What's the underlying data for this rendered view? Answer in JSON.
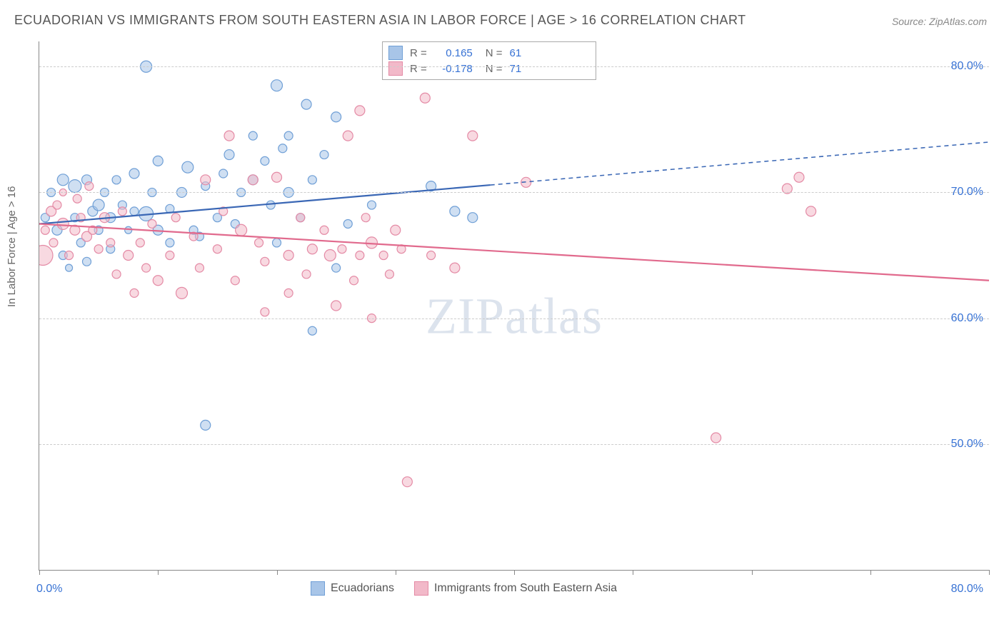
{
  "title": "ECUADORIAN VS IMMIGRANTS FROM SOUTH EASTERN ASIA IN LABOR FORCE | AGE > 16 CORRELATION CHART",
  "source": "Source: ZipAtlas.com",
  "ylabel": "In Labor Force | Age > 16",
  "watermark_bold": "ZIP",
  "watermark_light": "atlas",
  "chart": {
    "type": "scatter",
    "background_color": "#ffffff",
    "grid_color": "#cccccc",
    "axis_color": "#888888",
    "text_color": "#666666",
    "tick_label_color": "#3772d4",
    "xlim": [
      0,
      80
    ],
    "ylim": [
      40,
      82
    ],
    "xticks": [
      0,
      10,
      20,
      30,
      40,
      50,
      60,
      70,
      80
    ],
    "xmin_label": "0.0%",
    "xmax_label": "80.0%",
    "yticks": [
      {
        "v": 50,
        "label": "50.0%"
      },
      {
        "v": 60,
        "label": "60.0%"
      },
      {
        "v": 70,
        "label": "70.0%"
      },
      {
        "v": 80,
        "label": "80.0%"
      }
    ],
    "correlation_labels": {
      "r_prefix": "R =",
      "n_prefix": "N ="
    },
    "series": [
      {
        "name": "Ecuadorians",
        "fill": "#a8c5e8",
        "fill_opacity": 0.55,
        "stroke": "#6f9fd6",
        "line_color": "#3a67b5",
        "line_width": 2.2,
        "r_value": "0.165",
        "n_value": "61",
        "trend": {
          "x1": 0,
          "y1": 67.5,
          "x2": 80,
          "y2": 74.0,
          "solid_until_x": 38
        },
        "points": [
          {
            "x": 0.5,
            "y": 68,
            "r": 6
          },
          {
            "x": 1,
            "y": 70,
            "r": 6
          },
          {
            "x": 1.5,
            "y": 67,
            "r": 7
          },
          {
            "x": 2,
            "y": 71,
            "r": 8
          },
          {
            "x": 2,
            "y": 65,
            "r": 6
          },
          {
            "x": 2.5,
            "y": 64,
            "r": 5
          },
          {
            "x": 3,
            "y": 70.5,
            "r": 9
          },
          {
            "x": 3,
            "y": 68,
            "r": 6
          },
          {
            "x": 3.5,
            "y": 66,
            "r": 6
          },
          {
            "x": 4,
            "y": 71,
            "r": 7
          },
          {
            "x": 4,
            "y": 64.5,
            "r": 6
          },
          {
            "x": 4.5,
            "y": 68.5,
            "r": 7
          },
          {
            "x": 5,
            "y": 69,
            "r": 8
          },
          {
            "x": 5,
            "y": 67,
            "r": 6
          },
          {
            "x": 5.5,
            "y": 70,
            "r": 6
          },
          {
            "x": 6,
            "y": 68,
            "r": 7
          },
          {
            "x": 6,
            "y": 65.5,
            "r": 6
          },
          {
            "x": 6.5,
            "y": 71,
            "r": 6
          },
          {
            "x": 7,
            "y": 69,
            "r": 6
          },
          {
            "x": 7.5,
            "y": 67,
            "r": 5
          },
          {
            "x": 8,
            "y": 71.5,
            "r": 7
          },
          {
            "x": 8,
            "y": 68.5,
            "r": 6
          },
          {
            "x": 9,
            "y": 80,
            "r": 8
          },
          {
            "x": 9,
            "y": 68.3,
            "r": 10
          },
          {
            "x": 9.5,
            "y": 70,
            "r": 6
          },
          {
            "x": 10,
            "y": 67,
            "r": 7
          },
          {
            "x": 10,
            "y": 72.5,
            "r": 7
          },
          {
            "x": 11,
            "y": 68.7,
            "r": 6
          },
          {
            "x": 11,
            "y": 66,
            "r": 6
          },
          {
            "x": 12,
            "y": 70,
            "r": 7
          },
          {
            "x": 12.5,
            "y": 72,
            "r": 8
          },
          {
            "x": 13,
            "y": 67,
            "r": 6
          },
          {
            "x": 13.5,
            "y": 66.5,
            "r": 6
          },
          {
            "x": 14,
            "y": 51.5,
            "r": 7
          },
          {
            "x": 14,
            "y": 70.5,
            "r": 6
          },
          {
            "x": 15,
            "y": 68,
            "r": 6
          },
          {
            "x": 15.5,
            "y": 71.5,
            "r": 6
          },
          {
            "x": 16,
            "y": 73,
            "r": 7
          },
          {
            "x": 16.5,
            "y": 67.5,
            "r": 6
          },
          {
            "x": 17,
            "y": 70,
            "r": 6
          },
          {
            "x": 18,
            "y": 71,
            "r": 7
          },
          {
            "x": 18,
            "y": 74.5,
            "r": 6
          },
          {
            "x": 19,
            "y": 72.5,
            "r": 6
          },
          {
            "x": 19.5,
            "y": 69,
            "r": 6
          },
          {
            "x": 20,
            "y": 78.5,
            "r": 8
          },
          {
            "x": 20,
            "y": 66,
            "r": 6
          },
          {
            "x": 20.5,
            "y": 73.5,
            "r": 6
          },
          {
            "x": 21,
            "y": 70,
            "r": 7
          },
          {
            "x": 21,
            "y": 74.5,
            "r": 6
          },
          {
            "x": 22,
            "y": 68,
            "r": 6
          },
          {
            "x": 22.5,
            "y": 77,
            "r": 7
          },
          {
            "x": 23,
            "y": 59,
            "r": 6
          },
          {
            "x": 23,
            "y": 71,
            "r": 6
          },
          {
            "x": 24,
            "y": 73,
            "r": 6
          },
          {
            "x": 25,
            "y": 76,
            "r": 7
          },
          {
            "x": 25,
            "y": 64,
            "r": 6
          },
          {
            "x": 26,
            "y": 67.5,
            "r": 6
          },
          {
            "x": 28,
            "y": 69,
            "r": 6
          },
          {
            "x": 33,
            "y": 70.5,
            "r": 7
          },
          {
            "x": 35,
            "y": 68.5,
            "r": 7
          },
          {
            "x": 36.5,
            "y": 68,
            "r": 7
          }
        ]
      },
      {
        "name": "Immigrants from South Eastern Asia",
        "fill": "#f2b9c9",
        "fill_opacity": 0.55,
        "stroke": "#e48aa5",
        "line_color": "#e16a8d",
        "line_width": 2.2,
        "r_value": "-0.178",
        "n_value": "71",
        "trend": {
          "x1": 0,
          "y1": 67.5,
          "x2": 80,
          "y2": 63.0,
          "solid_until_x": 80
        },
        "points": [
          {
            "x": 0.3,
            "y": 65,
            "r": 14
          },
          {
            "x": 0.5,
            "y": 67,
            "r": 6
          },
          {
            "x": 1,
            "y": 68.5,
            "r": 7
          },
          {
            "x": 1.2,
            "y": 66,
            "r": 6
          },
          {
            "x": 1.5,
            "y": 69,
            "r": 6
          },
          {
            "x": 2,
            "y": 67.5,
            "r": 8
          },
          {
            "x": 2,
            "y": 70,
            "r": 5
          },
          {
            "x": 2.5,
            "y": 65,
            "r": 6
          },
          {
            "x": 3,
            "y": 67,
            "r": 7
          },
          {
            "x": 3.2,
            "y": 69.5,
            "r": 6
          },
          {
            "x": 3.5,
            "y": 68,
            "r": 6
          },
          {
            "x": 4,
            "y": 66.5,
            "r": 7
          },
          {
            "x": 4.2,
            "y": 70.5,
            "r": 6
          },
          {
            "x": 4.5,
            "y": 67,
            "r": 6
          },
          {
            "x": 5,
            "y": 65.5,
            "r": 6
          },
          {
            "x": 5.5,
            "y": 68,
            "r": 7
          },
          {
            "x": 6,
            "y": 66,
            "r": 6
          },
          {
            "x": 6.5,
            "y": 63.5,
            "r": 6
          },
          {
            "x": 7,
            "y": 68.5,
            "r": 6
          },
          {
            "x": 7.5,
            "y": 65,
            "r": 7
          },
          {
            "x": 8,
            "y": 62,
            "r": 6
          },
          {
            "x": 8.5,
            "y": 66,
            "r": 6
          },
          {
            "x": 9,
            "y": 64,
            "r": 6
          },
          {
            "x": 9.5,
            "y": 67.5,
            "r": 6
          },
          {
            "x": 10,
            "y": 63,
            "r": 7
          },
          {
            "x": 11,
            "y": 65,
            "r": 6
          },
          {
            "x": 11.5,
            "y": 68,
            "r": 6
          },
          {
            "x": 12,
            "y": 62,
            "r": 8
          },
          {
            "x": 13,
            "y": 66.5,
            "r": 6
          },
          {
            "x": 13.5,
            "y": 64,
            "r": 6
          },
          {
            "x": 14,
            "y": 71,
            "r": 7
          },
          {
            "x": 15,
            "y": 65.5,
            "r": 6
          },
          {
            "x": 15.5,
            "y": 68.5,
            "r": 6
          },
          {
            "x": 16,
            "y": 74.5,
            "r": 7
          },
          {
            "x": 16.5,
            "y": 63,
            "r": 6
          },
          {
            "x": 17,
            "y": 67,
            "r": 8
          },
          {
            "x": 18,
            "y": 71,
            "r": 7
          },
          {
            "x": 18.5,
            "y": 66,
            "r": 6
          },
          {
            "x": 19,
            "y": 64.5,
            "r": 6
          },
          {
            "x": 19,
            "y": 60.5,
            "r": 6
          },
          {
            "x": 20,
            "y": 71.2,
            "r": 7
          },
          {
            "x": 21,
            "y": 65,
            "r": 7
          },
          {
            "x": 21,
            "y": 62,
            "r": 6
          },
          {
            "x": 22,
            "y": 68,
            "r": 6
          },
          {
            "x": 22.5,
            "y": 63.5,
            "r": 6
          },
          {
            "x": 23,
            "y": 65.5,
            "r": 7
          },
          {
            "x": 24,
            "y": 67,
            "r": 6
          },
          {
            "x": 24.5,
            "y": 65,
            "r": 8
          },
          {
            "x": 25,
            "y": 61,
            "r": 7
          },
          {
            "x": 25.5,
            "y": 65.5,
            "r": 6
          },
          {
            "x": 26,
            "y": 74.5,
            "r": 7
          },
          {
            "x": 26.5,
            "y": 63,
            "r": 6
          },
          {
            "x": 27,
            "y": 76.5,
            "r": 7
          },
          {
            "x": 27,
            "y": 65,
            "r": 6
          },
          {
            "x": 27.5,
            "y": 68,
            "r": 6
          },
          {
            "x": 28,
            "y": 66,
            "r": 8
          },
          {
            "x": 28,
            "y": 60,
            "r": 6
          },
          {
            "x": 29,
            "y": 65,
            "r": 6
          },
          {
            "x": 29.5,
            "y": 63.5,
            "r": 6
          },
          {
            "x": 30,
            "y": 67,
            "r": 7
          },
          {
            "x": 30.5,
            "y": 65.5,
            "r": 6
          },
          {
            "x": 31,
            "y": 47,
            "r": 7
          },
          {
            "x": 32.5,
            "y": 77.5,
            "r": 7
          },
          {
            "x": 33,
            "y": 65,
            "r": 6
          },
          {
            "x": 35,
            "y": 64,
            "r": 7
          },
          {
            "x": 36.5,
            "y": 74.5,
            "r": 7
          },
          {
            "x": 41,
            "y": 70.8,
            "r": 7
          },
          {
            "x": 57,
            "y": 50.5,
            "r": 7
          },
          {
            "x": 63,
            "y": 70.3,
            "r": 7
          },
          {
            "x": 64,
            "y": 71.2,
            "r": 7
          },
          {
            "x": 65,
            "y": 68.5,
            "r": 7
          }
        ]
      }
    ]
  },
  "bottom_legend": [
    {
      "label": "Ecuadorians",
      "fill": "#a8c5e8",
      "stroke": "#6f9fd6"
    },
    {
      "label": "Immigrants from South Eastern Asia",
      "fill": "#f2b9c9",
      "stroke": "#e48aa5"
    }
  ]
}
